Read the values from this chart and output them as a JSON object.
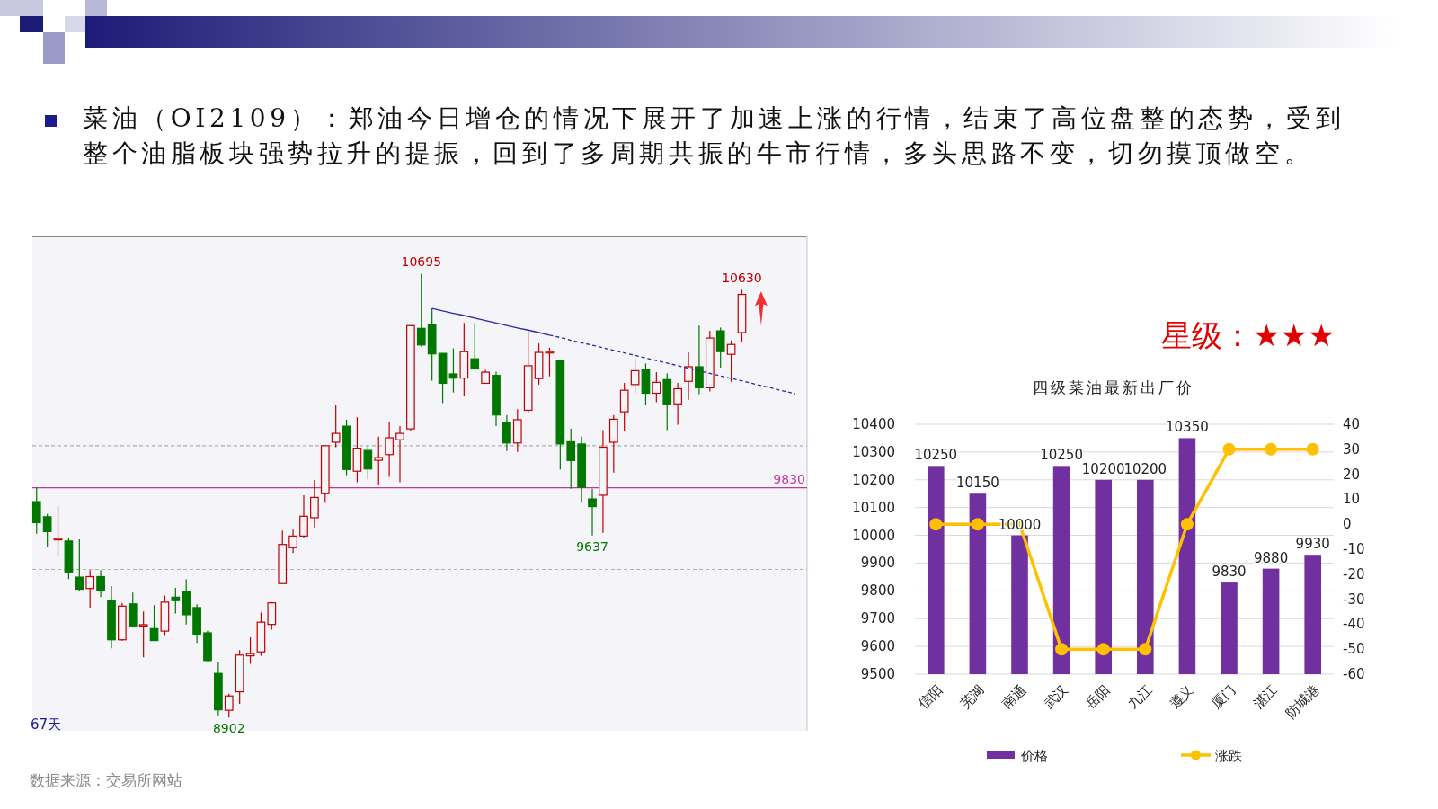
{
  "chart_data": [
    {
      "type": "candlestick",
      "title": "菜油（OI2109）：郑油今日增仓的情况下展开了加速上涨的行情，结束了高位盘整的态势，受到整个油脂板块强势拉升的提振，回到了多周期共振的牛市行情，多头思路不变，切勿摸顶做空。",
      "categories": [
        null,
        null,
        null,
        null,
        null,
        null,
        null,
        null,
        null,
        null,
        null,
        null,
        null,
        null,
        null,
        null,
        null,
        null,
        null,
        null,
        null,
        null,
        null,
        null,
        null,
        null,
        null,
        null,
        null,
        null,
        null,
        null,
        null,
        null,
        null,
        null,
        null,
        null,
        null,
        null,
        null,
        null,
        null,
        null,
        null,
        null,
        null,
        null,
        null,
        null,
        null,
        null,
        null,
        null,
        null,
        null,
        null,
        null,
        null,
        null,
        null,
        null,
        null,
        null,
        null,
        null,
        null,
        null,
        null,
        null,
        null,
        null
      ],
      "ohlc": [
        [
          9774,
          9832,
          9644,
          9689
        ],
        [
          9713,
          9724,
          9592,
          9653
        ],
        [
          9620,
          9757,
          9553,
          9625
        ],
        [
          9615,
          9628,
          9461,
          9488
        ],
        [
          9469,
          9622,
          9414,
          9420
        ],
        [
          9423,
          9497,
          9346,
          9471
        ],
        [
          9471,
          9497,
          9388,
          9414
        ],
        [
          9374,
          9433,
          9181,
          9216
        ],
        [
          9216,
          9365,
          9212,
          9352
        ],
        [
          9361,
          9407,
          9268,
          9272
        ],
        [
          9272,
          9330,
          9145,
          9277
        ],
        [
          9261,
          9356,
          9212,
          9213
        ],
        [
          9251,
          9395,
          9235,
          9368
        ],
        [
          9388,
          9426,
          9322,
          9374
        ],
        [
          9411,
          9460,
          9278,
          9317
        ],
        [
          9346,
          9359,
          9203,
          9239
        ],
        [
          9244,
          9252,
          9129,
          9132
        ],
        [
          9080,
          9128,
          8911,
          8933
        ],
        [
          8931,
          8998,
          8902,
          8989
        ],
        [
          9006,
          9174,
          8957,
          9154
        ],
        [
          9151,
          9226,
          9119,
          9160
        ],
        [
          9167,
          9326,
          9151,
          9287
        ],
        [
          9278,
          9368,
          9257,
          9365
        ],
        [
          9443,
          9657,
          9443,
          9601
        ],
        [
          9588,
          9661,
          9566,
          9635
        ],
        [
          9635,
          9800,
          9625,
          9715
        ],
        [
          9709,
          9861,
          9670,
          9791
        ],
        [
          9806,
          10003,
          9770,
          10000
        ],
        [
          10014,
          10163,
          9994,
          10050
        ],
        [
          10079,
          10105,
          9881,
          9904
        ],
        [
          9897,
          10115,
          9852,
          9990
        ],
        [
          9981,
          10001,
          9865,
          9906
        ],
        [
          9941,
          10037,
          9843,
          9952
        ],
        [
          9964,
          10094,
          9874,
          10032
        ],
        [
          10024,
          10079,
          9852,
          10050
        ],
        [
          10068,
          10487,
          10059,
          10485
        ],
        [
          10474,
          10695,
          10400,
          10407
        ],
        [
          10490,
          10555,
          10263,
          10371
        ],
        [
          10373,
          10373,
          10172,
          10252
        ],
        [
          10290,
          10393,
          10215,
          10273
        ],
        [
          10273,
          10496,
          10202,
          10380
        ],
        [
          10351,
          10496,
          10310,
          10310
        ],
        [
          10252,
          10306,
          10250,
          10297
        ],
        [
          10284,
          10299,
          10079,
          10124
        ],
        [
          10094,
          10124,
          9979,
          10011
        ],
        [
          10011,
          10147,
          9975,
          10105
        ],
        [
          10143,
          10461,
          10133,
          10323
        ],
        [
          10271,
          10413,
          10247,
          10377
        ],
        [
          10377,
          10396,
          10280,
          10380
        ],
        [
          10345,
          10345,
          9904,
          10007
        ],
        [
          10016,
          10068,
          9826,
          9940
        ],
        [
          10007,
          10037,
          9770,
          9832
        ],
        [
          9785,
          9826,
          9637,
          9754
        ],
        [
          9800,
          10063,
          9648,
          9994
        ],
        [
          10014,
          10124,
          9891,
          10107
        ],
        [
          10137,
          10254,
          10059,
          10224
        ],
        [
          10247,
          10351,
          10212,
          10303
        ],
        [
          10308,
          10332,
          10166,
          10212
        ],
        [
          10212,
          10297,
          10176,
          10256
        ],
        [
          10267,
          10293,
          10063,
          10169
        ],
        [
          10169,
          10254,
          10085,
          10230
        ],
        [
          10260,
          10377,
          10186,
          10319
        ],
        [
          10319,
          10485,
          10208,
          10234
        ],
        [
          10234,
          10464,
          10219,
          10435
        ],
        [
          10464,
          10477,
          10315,
          10380
        ],
        [
          10369,
          10425,
          10258,
          10409
        ],
        [
          10457,
          10630,
          10420,
          10611
        ],
        null,
        null,
        null,
        null,
        null
      ],
      "series": [
        {
          "type": "line",
          "color": "#2a2a9c",
          "line_style": "solid",
          "values": [
            null,
            null,
            null,
            null,
            null,
            null,
            null,
            null,
            null,
            null,
            null,
            null,
            null,
            null,
            null,
            null,
            null,
            null,
            null,
            null,
            null,
            null,
            null,
            null,
            null,
            null,
            null,
            null,
            null,
            null,
            null,
            null,
            null,
            null,
            null,
            null,
            null,
            10555,
            10545,
            10535,
            10526,
            10516,
            10506,
            10496,
            10486,
            10476,
            10467,
            10457,
            10447,
            null,
            null,
            null,
            null,
            null,
            null,
            null,
            null,
            null,
            null,
            null,
            null,
            null,
            null,
            null,
            null,
            null,
            null,
            null,
            null,
            null,
            null,
            null
          ]
        },
        {
          "type": "line",
          "color": "#2a2a9c",
          "line_style": "dashed",
          "values": [
            null,
            null,
            null,
            null,
            null,
            null,
            null,
            null,
            null,
            null,
            null,
            null,
            null,
            null,
            null,
            null,
            null,
            null,
            null,
            null,
            null,
            null,
            null,
            null,
            null,
            null,
            null,
            null,
            null,
            null,
            null,
            null,
            null,
            null,
            null,
            null,
            null,
            null,
            null,
            null,
            null,
            null,
            null,
            null,
            null,
            null,
            null,
            null,
            10447,
            10437,
            10426,
            10416,
            10406,
            10396,
            10385,
            10375,
            10365,
            10354,
            10344,
            10334,
            10323,
            10313,
            10303,
            10292,
            10282,
            10272,
            10262,
            10251,
            10241,
            10231,
            10220,
            10210
          ]
        }
      ],
      "ref_lines": [
        {
          "axis": "y",
          "value": 9830,
          "label": "9830",
          "color": "#c0399c",
          "line_style": "solid"
        },
        {
          "axis": "y",
          "value": 10000,
          "color": "#b0b0b0",
          "line_style": "dashed"
        },
        {
          "axis": "y",
          "value": 9500,
          "color": "#b0b0b0",
          "line_style": "dashed"
        }
      ],
      "annotations": [
        {
          "text": "10695",
          "y": 10695
        },
        {
          "text": "10630",
          "y": 10630
        },
        {
          "text": "9637",
          "y": 9637
        },
        {
          "text": "8902",
          "y": 8902
        },
        "67天",
        "星级：★★★",
        "数据来源：交易所网站"
      ]
    },
    {
      "type": "bar",
      "title": "四级菜油最新出厂价",
      "categories": [
        "信阳",
        "芜湖",
        "南通",
        "武汉",
        "岳阳",
        "九江",
        "遵义",
        "厦门",
        "湛江",
        "防城港"
      ],
      "series": [
        {
          "name": "价格",
          "type": "bar",
          "color": "#7030a0",
          "values": [
            10250,
            10150,
            10000,
            10250,
            10200,
            10200,
            10350,
            9830,
            9880,
            9930
          ],
          "value_labels": [
            "10250",
            "10150",
            "10000",
            "10250",
            "10200",
            "10200",
            "10350",
            "9830",
            "9880",
            "9930"
          ]
        },
        {
          "name": "涨跌",
          "type": "line",
          "axis": "y2",
          "color": "#ffc000",
          "marker": "circle",
          "values": [
            0,
            0,
            0,
            -50,
            -50,
            -50,
            0,
            30,
            30,
            30
          ]
        }
      ],
      "ylim": [
        9500,
        10400
      ],
      "yticks": [
        9500,
        9600,
        9700,
        9800,
        9900,
        10000,
        10100,
        10200,
        10300,
        10400
      ],
      "y2lim": [
        -60,
        40
      ],
      "y2ticks": [
        -60,
        -50,
        -40,
        -30,
        -20,
        -10,
        0,
        10,
        20,
        30,
        40
      ],
      "grid": "y",
      "legend": "bottom"
    }
  ]
}
